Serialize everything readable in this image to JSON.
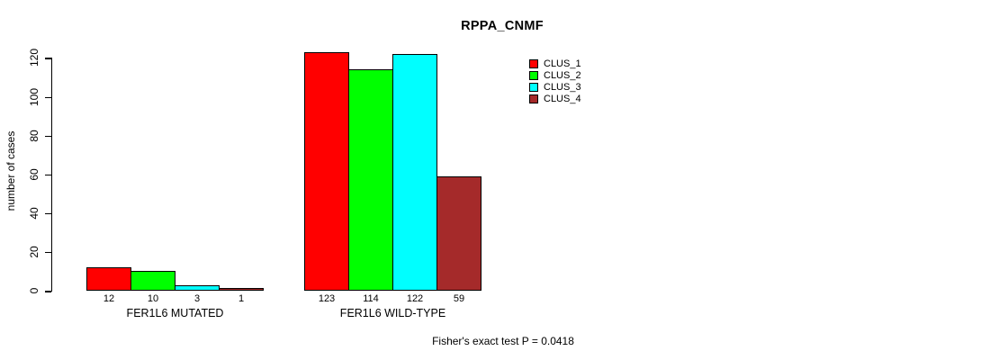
{
  "title": "RPPA_CNMF",
  "footer": "Fisher's exact test P = 0.0418",
  "chart_data": {
    "type": "bar",
    "title": "RPPA_CNMF",
    "xlabel": "",
    "ylabel": "number of cases",
    "categories": [
      "FER1L6 MUTATED",
      "FER1L6 WILD-TYPE"
    ],
    "series": [
      {
        "name": "CLUS_1",
        "color": "#FF0000",
        "values": [
          12,
          123
        ]
      },
      {
        "name": "CLUS_2",
        "color": "#00FF00",
        "values": [
          10,
          114
        ]
      },
      {
        "name": "CLUS_3",
        "color": "#00FFFF",
        "values": [
          3,
          122
        ]
      },
      {
        "name": "CLUS_4",
        "color": "#A52A2A",
        "values": [
          1,
          59
        ]
      }
    ],
    "groups": [
      {
        "label": "FER1L6 MUTATED",
        "values": [
          12,
          10,
          3,
          1
        ]
      },
      {
        "label": "FER1L6 WILD-TYPE",
        "values": [
          123,
          114,
          122,
          59
        ]
      }
    ],
    "bar_value_labels": [
      [
        "12",
        "10",
        "3",
        "1"
      ],
      [
        "123",
        "114",
        "122",
        "59"
      ]
    ],
    "yticks": [
      0,
      20,
      40,
      60,
      80,
      100,
      120
    ],
    "ylim": [
      0,
      130
    ],
    "grid": false,
    "legend_position": "top-right",
    "legend": [
      "CLUS_1",
      "CLUS_2",
      "CLUS_3",
      "CLUS_4"
    ],
    "annotation": "Fisher's exact test P = 0.0418"
  }
}
